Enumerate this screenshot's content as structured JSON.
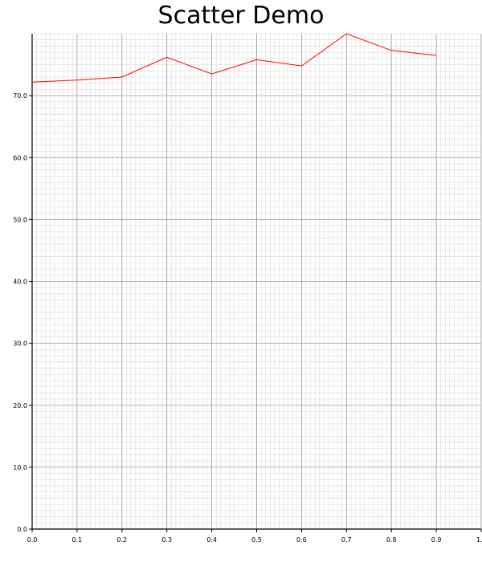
{
  "chart_data": {
    "type": "line",
    "title": "Scatter Demo",
    "xlabel": "",
    "ylabel": "",
    "xlim": [
      0.0,
      1.0
    ],
    "ylim": [
      0.0,
      80.0
    ],
    "grid": true,
    "x_ticks": [
      "0.0",
      "0.1",
      "0.2",
      "0.3",
      "0.4",
      "0.5",
      "0.6",
      "0.7",
      "0.8",
      "0.9",
      "1."
    ],
    "y_ticks": [
      "0.0",
      "10.0",
      "20.0",
      "30.0",
      "40.0",
      "50.0",
      "60.0",
      "70.0"
    ],
    "series": [
      {
        "color": "#ff0000",
        "x": [
          0.0,
          0.1,
          0.2,
          0.3,
          0.4,
          0.5,
          0.6,
          0.7,
          0.8,
          0.9
        ],
        "y": [
          72.2,
          72.5,
          73.0,
          76.2,
          73.5,
          75.8,
          74.8,
          80.0,
          77.3,
          76.5
        ]
      }
    ]
  }
}
